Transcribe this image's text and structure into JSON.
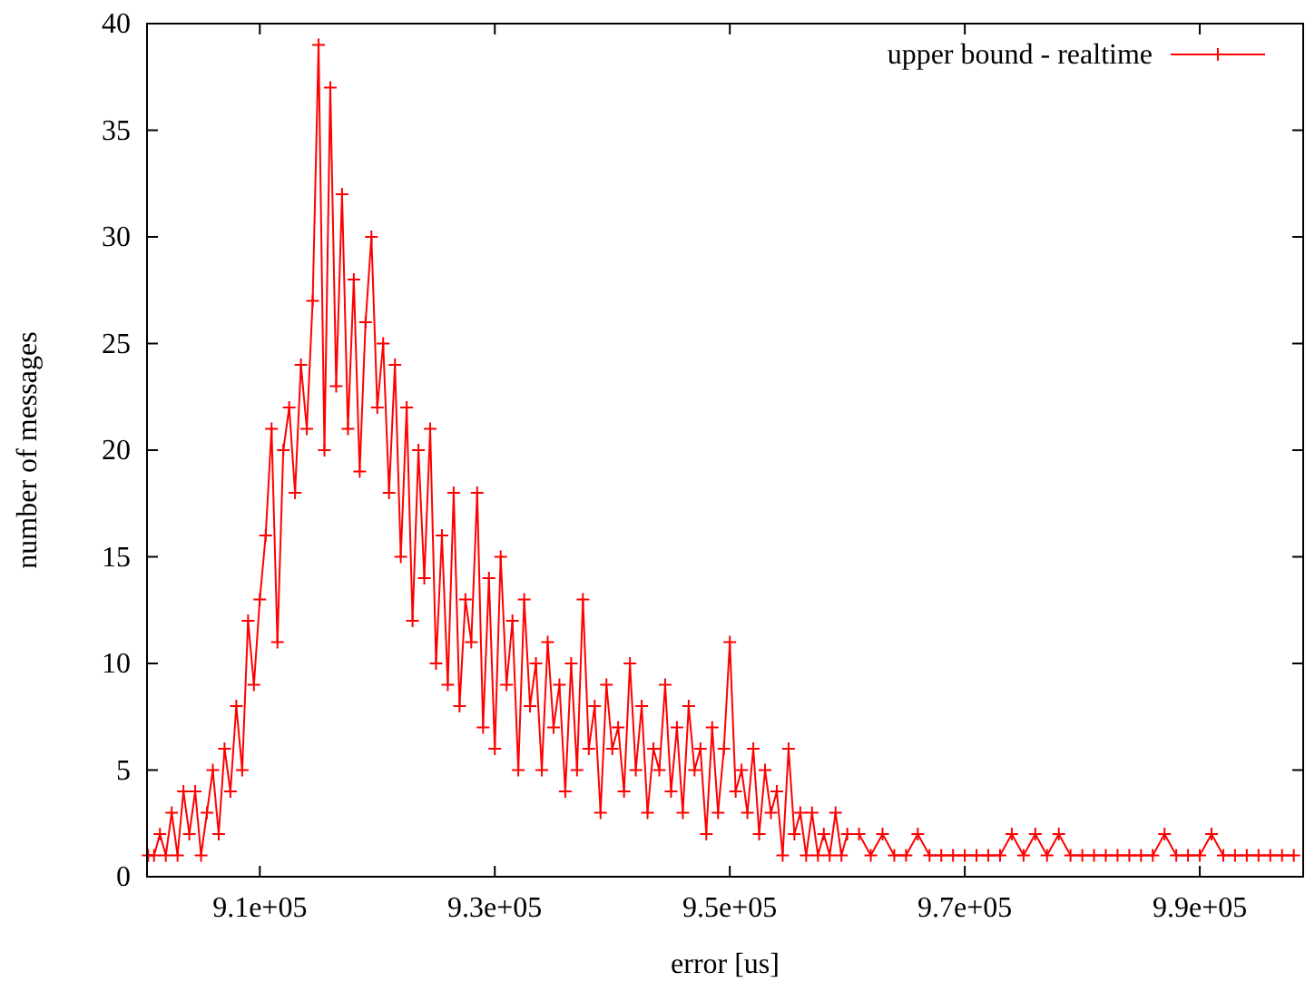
{
  "chart_data": {
    "type": "line",
    "xlabel": "error [us]",
    "ylabel": "number of messages",
    "xlim": [
      900400,
      998800
    ],
    "ylim": [
      0,
      40
    ],
    "xticks": [
      {
        "value": 910000,
        "label": "9.1e+05"
      },
      {
        "value": 930000,
        "label": "9.3e+05"
      },
      {
        "value": 950000,
        "label": "9.5e+05"
      },
      {
        "value": 970000,
        "label": "9.7e+05"
      },
      {
        "value": 990000,
        "label": "9.9e+05"
      }
    ],
    "yticks": [
      0,
      5,
      10,
      15,
      20,
      25,
      30,
      35,
      40
    ],
    "grid": false,
    "legend": "top right",
    "marker": "cross",
    "line_style": "solid",
    "series": [
      {
        "name": "upper bound - realtime",
        "color": "#ff0000",
        "x": [
          900500,
          901000,
          901500,
          902000,
          902500,
          903000,
          903500,
          904000,
          904500,
          905000,
          905500,
          906000,
          906500,
          907000,
          907500,
          908000,
          908500,
          909000,
          909500,
          910000,
          910500,
          911000,
          911500,
          912000,
          912500,
          913000,
          913500,
          914000,
          914500,
          915000,
          915500,
          916000,
          916500,
          917000,
          917500,
          918000,
          918500,
          919000,
          919500,
          920000,
          920500,
          921000,
          921500,
          922000,
          922500,
          923000,
          923500,
          924000,
          924500,
          925000,
          925500,
          926000,
          926500,
          927000,
          927500,
          928000,
          928500,
          929000,
          929500,
          930000,
          930500,
          931000,
          931500,
          932000,
          932500,
          933000,
          933500,
          934000,
          934500,
          935000,
          935500,
          936000,
          936500,
          937000,
          937500,
          938000,
          938500,
          939000,
          939500,
          940000,
          940500,
          941000,
          941500,
          942000,
          942500,
          943000,
          943500,
          944000,
          944500,
          945000,
          945500,
          946000,
          946500,
          947000,
          947500,
          948000,
          948500,
          949000,
          949500,
          950000,
          950500,
          951000,
          951500,
          952000,
          952500,
          953000,
          953500,
          954000,
          954500,
          955000,
          955500,
          956000,
          956500,
          957000,
          957500,
          958000,
          958500,
          959000,
          959500,
          960000,
          961000,
          962000,
          963000,
          964000,
          965000,
          966000,
          967000,
          968000,
          969000,
          970000,
          971000,
          972000,
          973000,
          974000,
          975000,
          976000,
          977000,
          978000,
          979000,
          980000,
          981000,
          982000,
          983000,
          984000,
          985000,
          986000,
          987000,
          988000,
          989000,
          990000,
          991000,
          992000,
          993000,
          994000,
          995000,
          996000,
          997000,
          998000
        ],
        "values": [
          1,
          1,
          2,
          1,
          3,
          1,
          4,
          2,
          4,
          1,
          3,
          5,
          2,
          6,
          4,
          8,
          5,
          12,
          9,
          13,
          16,
          21,
          11,
          20,
          22,
          18,
          24,
          21,
          27,
          39,
          20,
          37,
          23,
          32,
          21,
          28,
          19,
          26,
          30,
          22,
          25,
          18,
          24,
          15,
          22,
          12,
          20,
          14,
          21,
          10,
          16,
          9,
          18,
          8,
          13,
          11,
          18,
          7,
          14,
          6,
          15,
          9,
          12,
          5,
          13,
          8,
          10,
          5,
          11,
          7,
          9,
          4,
          10,
          5,
          13,
          6,
          8,
          3,
          9,
          6,
          7,
          4,
          10,
          5,
          8,
          3,
          6,
          5,
          9,
          4,
          7,
          3,
          8,
          5,
          6,
          2,
          7,
          3,
          6,
          11,
          4,
          5,
          3,
          6,
          2,
          5,
          3,
          4,
          1,
          6,
          2,
          3,
          1,
          3,
          1,
          2,
          1,
          3,
          1,
          2,
          2,
          1,
          2,
          1,
          1,
          2,
          1,
          1,
          1,
          1,
          1,
          1,
          1,
          2,
          1,
          2,
          1,
          2,
          1,
          1,
          1,
          1,
          1,
          1,
          1,
          1,
          2,
          1,
          1,
          1,
          2,
          1,
          1,
          1,
          1,
          1,
          1,
          1
        ]
      }
    ]
  }
}
